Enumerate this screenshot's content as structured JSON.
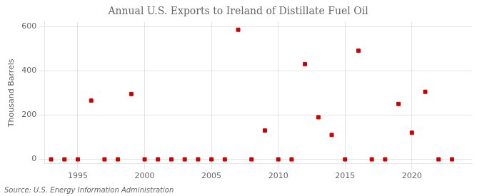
{
  "chart_data": {
    "type": "scatter",
    "title": "Annual U.S. Exports to Ireland of Distillate Fuel Oil",
    "ylabel": "Thousand Barrels",
    "source": "Source: U.S. Energy Information Administration",
    "x": [
      1993,
      1994,
      1995,
      1996,
      1997,
      1998,
      1999,
      2000,
      2001,
      2002,
      2003,
      2004,
      2005,
      2006,
      2007,
      2008,
      2009,
      2010,
      2011,
      2012,
      2013,
      2014,
      2015,
      2016,
      2017,
      2018,
      2019,
      2020,
      2021,
      2022,
      2023
    ],
    "values": [
      0,
      0,
      0,
      265,
      0,
      0,
      295,
      0,
      0,
      0,
      0,
      0,
      0,
      0,
      585,
      0,
      130,
      0,
      0,
      430,
      190,
      110,
      0,
      490,
      0,
      0,
      250,
      120,
      305,
      0,
      0
    ],
    "color": "#cc0000",
    "marker": "square",
    "xlim": [
      1992.5,
      2024.5
    ],
    "xticks": [
      1995,
      2000,
      2005,
      2010,
      2015,
      2020
    ],
    "ylim": [
      -20,
      620
    ],
    "yticks": [
      0,
      200,
      400,
      600
    ],
    "grid": true
  }
}
